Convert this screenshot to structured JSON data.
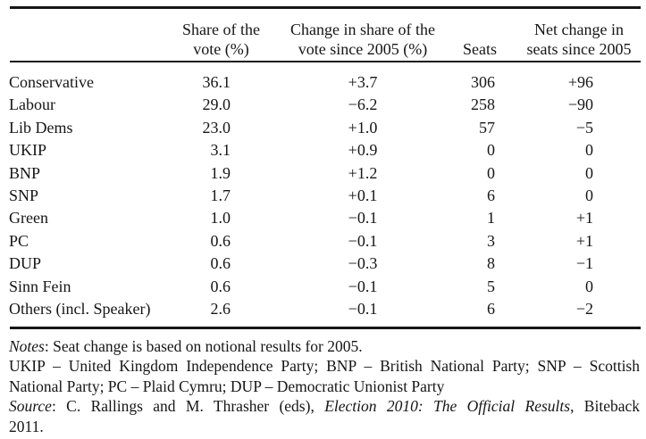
{
  "table": {
    "headers": {
      "share": [
        "Share of the",
        "vote (%)"
      ],
      "change": [
        "Change in share of the",
        "vote since 2005 (%)"
      ],
      "seats": [
        "Seats"
      ],
      "net": [
        "Net change in",
        "seats since 2005"
      ]
    },
    "rows": [
      {
        "party": "Conservative",
        "share": "36.1",
        "change": "+3.7",
        "seats": "306",
        "net": "+96"
      },
      {
        "party": "Labour",
        "share": "29.0",
        "change": "−6.2",
        "seats": "258",
        "net": "−90"
      },
      {
        "party": "Lib Dems",
        "share": "23.0",
        "change": "+1.0",
        "seats": "57",
        "net": "−5"
      },
      {
        "party": "UKIP",
        "share": "3.1",
        "change": "+0.9",
        "seats": "0",
        "net": "0"
      },
      {
        "party": "BNP",
        "share": "1.9",
        "change": "+1.2",
        "seats": "0",
        "net": "0"
      },
      {
        "party": "SNP",
        "share": "1.7",
        "change": "+0.1",
        "seats": "6",
        "net": "0"
      },
      {
        "party": "Green",
        "share": "1.0",
        "change": "−0.1",
        "seats": "1",
        "net": "+1"
      },
      {
        "party": "PC",
        "share": "0.6",
        "change": "−0.1",
        "seats": "3",
        "net": "+1"
      },
      {
        "party": "DUP",
        "share": "0.6",
        "change": "−0.3",
        "seats": "8",
        "net": "−1"
      },
      {
        "party": "Sinn Fein",
        "share": "0.6",
        "change": "−0.1",
        "seats": "5",
        "net": "0"
      },
      {
        "party": "Others (incl. Speaker)",
        "share": "2.6",
        "change": "−0.1",
        "seats": "6",
        "net": "−2"
      }
    ]
  },
  "notes": {
    "lines": [
      {
        "justify": false,
        "segments": [
          {
            "t": "Notes",
            "i": true
          },
          {
            "t": ": Seat change is based on notional results for 2005.",
            "i": false
          }
        ]
      },
      {
        "justify": true,
        "segments": [
          {
            "t": "UKIP – United Kingdom Independence Party; BNP – British National Party; SNP – Scottish",
            "i": false
          }
        ]
      },
      {
        "justify": false,
        "segments": [
          {
            "t": "National Party; PC – Plaid Cymru; DUP – Democratic Unionist Party",
            "i": false
          }
        ]
      },
      {
        "justify": true,
        "segments": [
          {
            "t": "Source",
            "i": true
          },
          {
            "t": ": C. Rallings and M. Thrasher (eds), ",
            "i": false
          },
          {
            "t": "Election 2010: The Official Results",
            "i": true
          },
          {
            "t": ", Biteback",
            "i": false
          }
        ]
      },
      {
        "justify": false,
        "segments": [
          {
            "t": "2011.",
            "i": false
          }
        ]
      }
    ]
  },
  "colors": {
    "text": "#161616",
    "rule": "#161616",
    "background": "#ffffff"
  }
}
